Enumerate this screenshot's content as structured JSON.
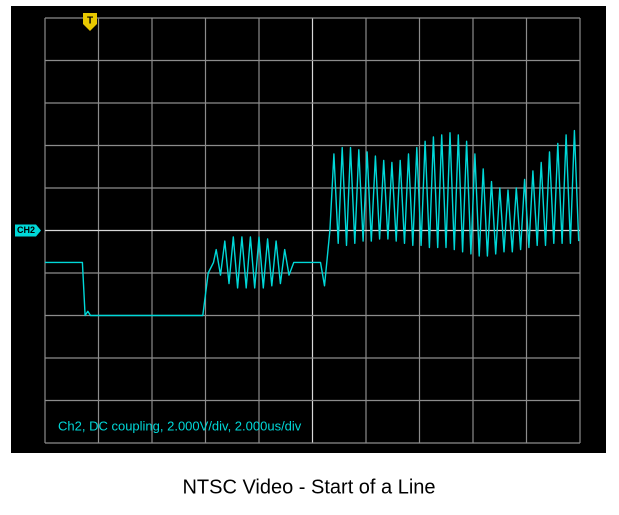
{
  "chart_data": {
    "type": "line",
    "title": "NTSC Video - Start of a Line",
    "annotation": "Ch2, DC coupling, 2.000V/div, 2.000us/div",
    "channel_label": "CH2",
    "trigger_label": "T",
    "color": "#00d8d8",
    "grid": true,
    "xlim": [
      0,
      20
    ],
    "ylim": [
      -10,
      10
    ],
    "xticks": [
      0,
      2,
      4,
      6,
      8,
      10,
      12,
      14,
      16,
      18,
      20
    ],
    "yticks": [
      -10,
      -8,
      -6,
      -4,
      -2,
      0,
      2,
      4,
      6,
      8,
      10
    ],
    "x": [
      0,
      1.4,
      1.5,
      1.6,
      1.7,
      5.9,
      6.1,
      6.3,
      6.4,
      6.56,
      6.72,
      6.88,
      7.04,
      7.2,
      7.36,
      7.52,
      7.68,
      7.84,
      8.0,
      8.16,
      8.32,
      8.48,
      8.64,
      8.8,
      8.96,
      9.12,
      9.3,
      10.3,
      10.45,
      10.65,
      10.8,
      10.96,
      11.11,
      11.27,
      11.42,
      11.58,
      11.73,
      11.89,
      12.04,
      12.2,
      12.35,
      12.51,
      12.66,
      12.82,
      12.97,
      13.13,
      13.28,
      13.44,
      13.59,
      13.75,
      13.9,
      14.06,
      14.21,
      14.37,
      14.52,
      14.68,
      14.83,
      14.99,
      15.14,
      15.3,
      15.45,
      15.61,
      15.76,
      15.92,
      16.07,
      16.23,
      16.38,
      16.54,
      16.69,
      16.85,
      17.0,
      17.16,
      17.31,
      17.47,
      17.62,
      17.78,
      17.93,
      18.09,
      18.24,
      18.4,
      18.55,
      18.71,
      18.86,
      19.02,
      19.17,
      19.33,
      19.48,
      19.64,
      19.79,
      19.95
    ],
    "values": [
      -1.5,
      -1.5,
      -4.0,
      -3.8,
      -4.0,
      -4.0,
      -2.0,
      -1.5,
      -0.9,
      -2.1,
      -0.5,
      -2.5,
      -0.3,
      -2.7,
      -0.3,
      -2.7,
      -0.3,
      -2.7,
      -0.3,
      -2.7,
      -0.4,
      -2.6,
      -0.5,
      -2.5,
      -0.9,
      -2.1,
      -1.5,
      -1.5,
      -2.6,
      0.0,
      3.6,
      -0.6,
      3.9,
      -0.7,
      3.9,
      -0.6,
      3.8,
      -0.5,
      3.7,
      -0.5,
      3.5,
      -0.4,
      3.3,
      -0.4,
      3.2,
      -0.5,
      3.3,
      -0.6,
      3.6,
      -0.7,
      3.9,
      -0.7,
      4.2,
      -0.8,
      4.4,
      -0.8,
      4.5,
      -0.8,
      4.6,
      -0.9,
      4.5,
      -1.0,
      4.2,
      -1.1,
      3.6,
      -1.2,
      2.9,
      -1.2,
      2.3,
      -1.1,
      2.0,
      -1.0,
      1.9,
      -1.0,
      2.0,
      -0.9,
      2.4,
      -0.8,
      2.8,
      -0.7,
      3.2,
      -0.7,
      3.7,
      -0.6,
      4.1,
      -0.6,
      4.5,
      -0.6,
      4.7,
      -0.5
    ]
  }
}
